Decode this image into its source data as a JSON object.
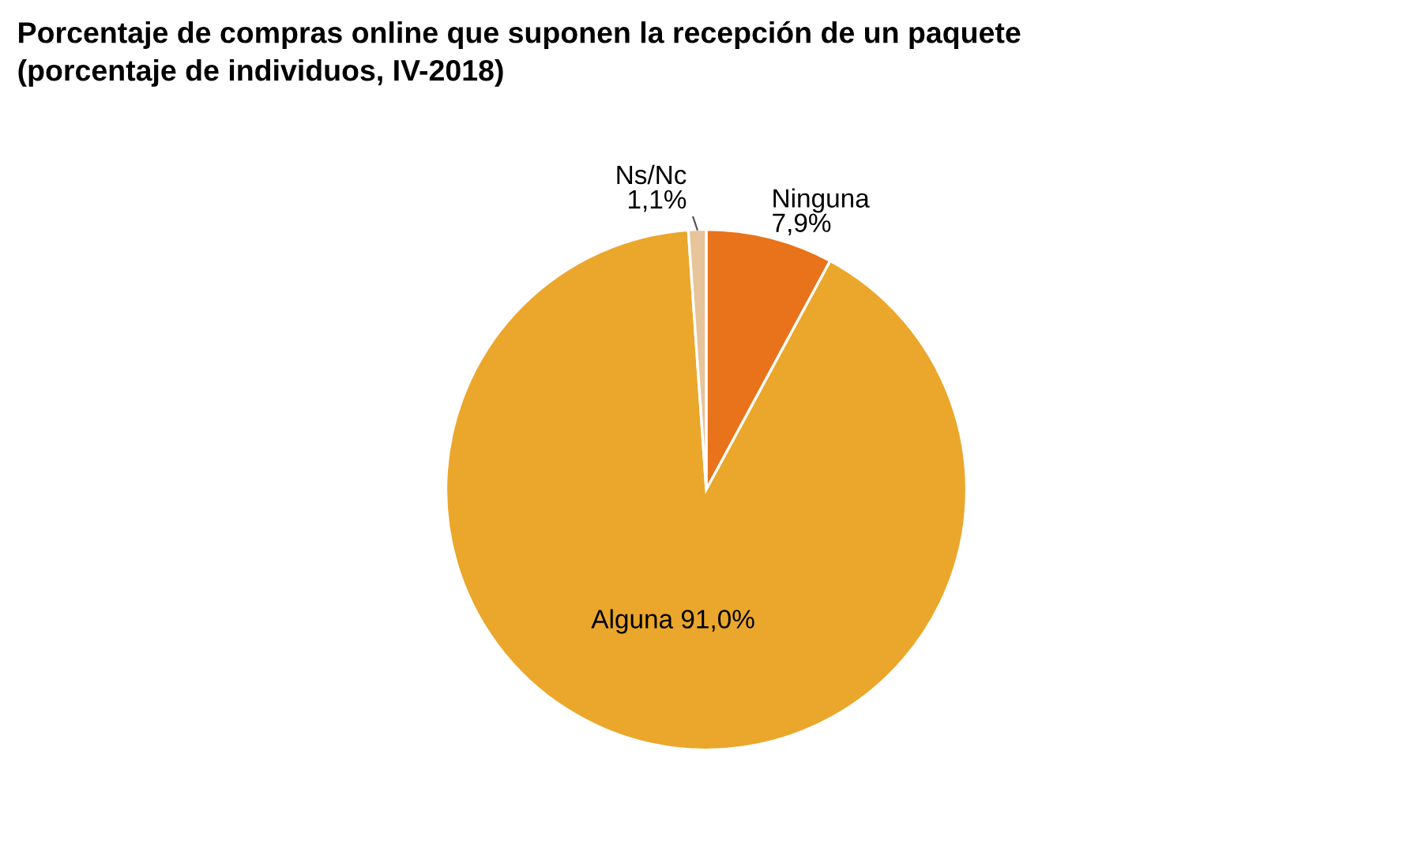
{
  "chart_data": {
    "type": "pie",
    "title": "Porcentaje de compras online que suponen la recepción de un paquete",
    "subtitle": "(porcentaje de individuos, IV-2018)",
    "categories": [
      "Ninguna",
      "Alguna",
      "Ns/Nc"
    ],
    "values": [
      7.9,
      91.0,
      1.1
    ],
    "value_labels": [
      "7,9%",
      "91,0%",
      "1,1%"
    ],
    "colors": [
      "#e8731a",
      "#eba72b",
      "#e8c49a"
    ],
    "legend": false
  }
}
